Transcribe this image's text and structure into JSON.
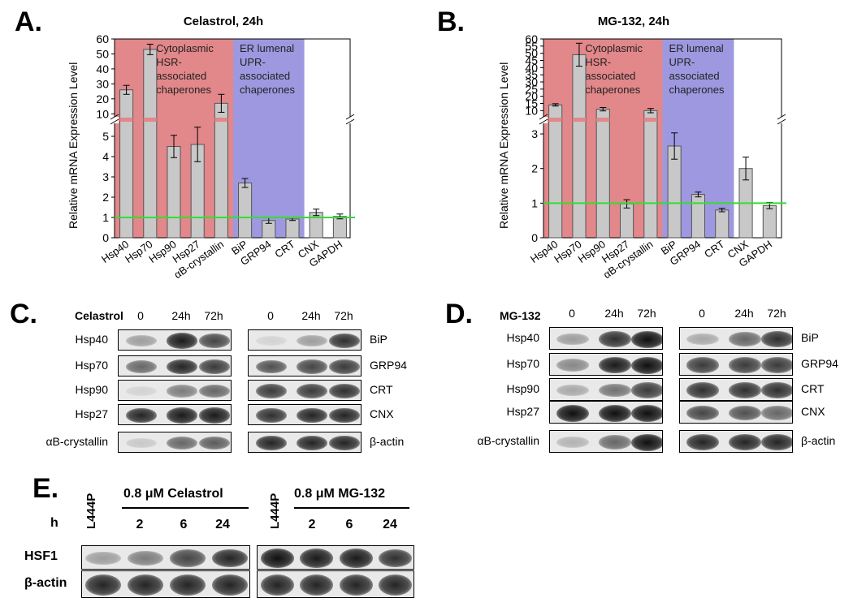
{
  "panels": {
    "A": "A.",
    "B": "B.",
    "C": "C.",
    "D": "D.",
    "E": "E."
  },
  "colors": {
    "hsr_bg": "#e2878a",
    "upr_bg": "#9e98e0",
    "bar": "#c8c8c8",
    "baseline": "#33dd33",
    "break_mark": "#e2878a"
  },
  "chart_data": [
    {
      "type": "bar",
      "title": "Celastrol, 24h",
      "ylabel": "Relative mRNA Expression Level",
      "broken_axis": true,
      "ylim_lower": [
        0,
        5.8
      ],
      "ylim_upper": [
        5.8,
        60
      ],
      "yticks_lower": [
        0,
        1,
        2,
        3,
        4,
        5
      ],
      "yticks_upper": [
        10,
        20,
        30,
        40,
        50,
        60
      ],
      "categories": [
        "Hsp40",
        "Hsp70",
        "Hsp90",
        "Hsp27",
        "αB-crystallin",
        "BiP",
        "GRP94",
        "CRT",
        "CNX",
        "GAPDH"
      ],
      "values": [
        26,
        53,
        4.5,
        4.6,
        17,
        2.7,
        0.85,
        0.92,
        1.25,
        1.05
      ],
      "errors": [
        3,
        3.5,
        0.55,
        0.85,
        6,
        0.22,
        0.14,
        0.07,
        0.16,
        0.12
      ],
      "regions": [
        {
          "label": "Cytoplasmic\nHSR-\nassociated\nchaperones",
          "from": 0,
          "to": 4
        },
        {
          "label": "ER lumenal\nUPR-\nassociated\nchaperones",
          "from": 5,
          "to": 7
        }
      ],
      "reference_line": 1
    },
    {
      "type": "bar",
      "title": "MG-132, 24h",
      "ylabel": "Relative mRNA Expression Level",
      "broken_axis": true,
      "ylim_lower": [
        0,
        3.4
      ],
      "ylim_upper": [
        3.4,
        60
      ],
      "yticks_lower": [
        0,
        1,
        2,
        3
      ],
      "yticks_upper": [
        10,
        15,
        20,
        25,
        30,
        35,
        40,
        45,
        50,
        55,
        60
      ],
      "categories": [
        "Hsp40",
        "Hsp70",
        "Hsp90",
        "Hsp27",
        "αB-crystallin",
        "BiP",
        "GRP94",
        "CRT",
        "CNX",
        "GAPDH"
      ],
      "values": [
        14,
        49,
        11,
        0.98,
        10,
        2.65,
        1.25,
        0.8,
        2.0,
        0.93
      ],
      "errors": [
        0.8,
        8,
        1.2,
        0.12,
        1.5,
        0.38,
        0.07,
        0.05,
        0.33,
        0.09
      ],
      "regions": [
        {
          "label": "Cytoplasmic\nHSR-\nassociated\nchaperones",
          "from": 0,
          "to": 4
        },
        {
          "label": "ER lumenal\nUPR-\nassociated\nchaperones",
          "from": 5,
          "to": 7
        }
      ],
      "reference_line": 1
    }
  ],
  "panelC": {
    "treatment": "Celastrol",
    "cols": [
      "0",
      "24h",
      "72h"
    ],
    "left_rows": [
      "Hsp40",
      "Hsp70",
      "Hsp90",
      "Hsp27",
      "αB-crystallin"
    ],
    "right_rows": [
      "BiP",
      "GRP94",
      "CRT",
      "CNX",
      "β-actin"
    ],
    "left_intensity": [
      [
        0.35,
        0.95,
        0.75
      ],
      [
        0.6,
        0.9,
        0.8
      ],
      [
        0.1,
        0.5,
        0.6
      ],
      [
        0.9,
        0.95,
        0.95
      ],
      [
        0.15,
        0.6,
        0.65
      ]
    ],
    "right_intensity": [
      [
        0.1,
        0.35,
        0.85
      ],
      [
        0.7,
        0.75,
        0.8
      ],
      [
        0.8,
        0.8,
        0.85
      ],
      [
        0.85,
        0.9,
        0.9
      ],
      [
        0.9,
        0.9,
        0.9
      ]
    ]
  },
  "panelD": {
    "treatment": "MG-132",
    "cols": [
      "0",
      "24h",
      "72h"
    ],
    "left_rows": [
      "Hsp40",
      "Hsp70",
      "Hsp90",
      "Hsp27",
      "αB-crystallin"
    ],
    "right_rows": [
      "BiP",
      "GRP94",
      "CRT",
      "CNX",
      "β-actin"
    ],
    "left_intensity": [
      [
        0.35,
        0.85,
        1.0
      ],
      [
        0.45,
        0.95,
        1.0
      ],
      [
        0.3,
        0.55,
        0.8
      ],
      [
        1.0,
        1.0,
        1.0
      ],
      [
        0.25,
        0.6,
        1.0
      ]
    ],
    "right_intensity": [
      [
        0.3,
        0.6,
        0.85
      ],
      [
        0.8,
        0.8,
        0.8
      ],
      [
        0.85,
        0.85,
        0.85
      ],
      [
        0.75,
        0.7,
        0.6
      ],
      [
        0.9,
        0.9,
        0.9
      ]
    ]
  },
  "panelE": {
    "hour_label": "h",
    "control": "L444P",
    "celastrol_header": "0.8 μM Celastrol",
    "mg132_header": "0.8 μM MG-132",
    "times": [
      "2",
      "6",
      "24"
    ],
    "rows": [
      "HSF1",
      "β-actin"
    ],
    "celastrol_intensity": [
      [
        0.35,
        0.5,
        0.75,
        0.9
      ],
      [
        0.9,
        0.9,
        0.9,
        0.9
      ]
    ],
    "mg132_intensity": [
      [
        1.0,
        0.95,
        0.95,
        0.85
      ],
      [
        0.9,
        0.9,
        0.9,
        0.9
      ]
    ]
  }
}
